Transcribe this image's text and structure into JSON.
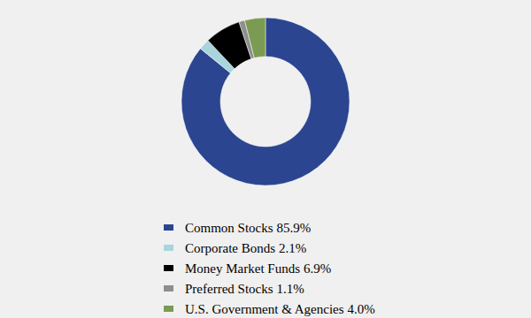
{
  "chart_data": {
    "type": "pie",
    "categories": [
      "Common Stocks",
      "Corporate Bonds",
      "Money Market Funds",
      "Preferred Stocks",
      "U.S. Government & Agencies"
    ],
    "values": [
      85.9,
      2.1,
      6.9,
      1.1,
      4.0
    ],
    "value_labels": [
      "85.9%",
      "2.1%",
      "6.9%",
      "1.1%",
      "4.0%"
    ],
    "colors": [
      "#2b4591",
      "#a9d4dc",
      "#000000",
      "#8e8e8e",
      "#7b9b53"
    ],
    "legend": "bottom"
  }
}
